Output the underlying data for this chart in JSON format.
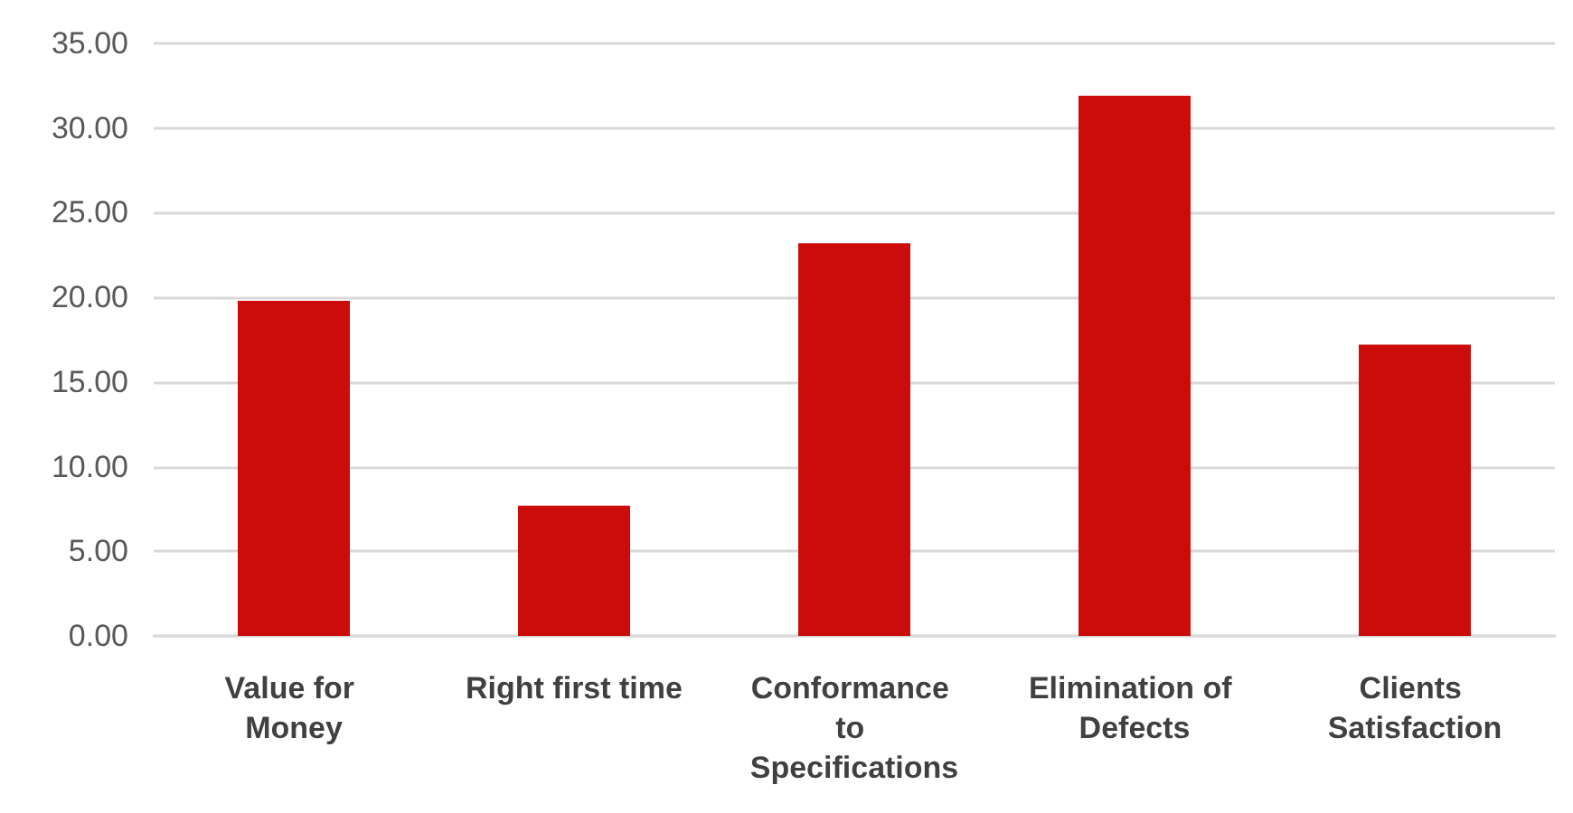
{
  "chart_data": {
    "type": "bar",
    "categories": [
      "Value for Money",
      "Right first time",
      "Conformance to Specifications",
      "Elimination of Defects",
      "Clients Satisfaction"
    ],
    "values": [
      19.8,
      7.7,
      23.2,
      31.9,
      17.2
    ],
    "color": "#cc0c0a",
    "ylim": [
      0,
      35
    ],
    "yticks": [
      {
        "value": 0,
        "label": "0.00"
      },
      {
        "value": 5,
        "label": "5.00"
      },
      {
        "value": 10,
        "label": "10.00"
      },
      {
        "value": 15,
        "label": "15.00"
      },
      {
        "value": 20,
        "label": "20.00"
      },
      {
        "value": 25,
        "label": "25.00"
      },
      {
        "value": 30,
        "label": "30.00"
      },
      {
        "value": 35,
        "label": "35.00"
      }
    ],
    "grid": "y"
  }
}
